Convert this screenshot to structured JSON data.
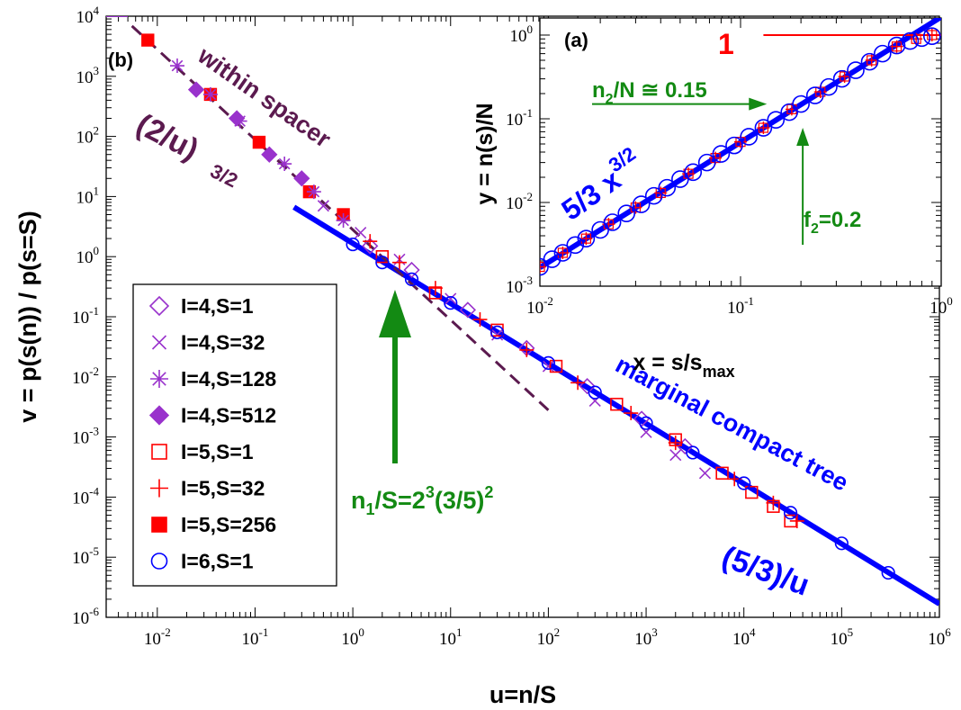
{
  "chart_data": [
    {
      "panel": "(b)",
      "type": "scatter",
      "xlabel": "u=n/S",
      "ylabel": "v = p(s(n)) / p(s=S)",
      "x_scale": "log",
      "y_scale": "log",
      "xlim": [
        0.003,
        1000000
      ],
      "ylim": [
        1e-06,
        10000
      ],
      "x_ticks": [
        "10-2",
        "10-1",
        "100",
        "101",
        "102",
        "103",
        "104",
        "105",
        "106"
      ],
      "y_ticks": [
        "10-6",
        "10-5",
        "10-4",
        "10-3",
        "10-2",
        "10-1",
        "100",
        "101",
        "102",
        "103",
        "104"
      ],
      "legend": {
        "placement": "left",
        "entries": [
          {
            "label": "I=4,S=1",
            "marker": "diamond-open",
            "color": "#9932cc"
          },
          {
            "label": "I=4,S=32",
            "marker": "x",
            "color": "#9932cc"
          },
          {
            "label": "I=4,S=128",
            "marker": "asterisk",
            "color": "#9932cc"
          },
          {
            "label": "I=4,S=512",
            "marker": "diamond-filled",
            "color": "#9932cc"
          },
          {
            "label": "I=5,S=1",
            "marker": "square-open",
            "color": "#ff0000"
          },
          {
            "label": "I=5,S=32",
            "marker": "plus",
            "color": "#ff0000"
          },
          {
            "label": "I=5,S=256",
            "marker": "square-filled",
            "color": "#ff0000"
          },
          {
            "label": "I=6,S=1",
            "marker": "circle-open",
            "color": "#0000ff"
          }
        ]
      },
      "series": [
        {
          "label": "I=5,S=256",
          "x": [
            0.008,
            0.035,
            0.11,
            0.36,
            0.8
          ],
          "y": [
            4000,
            500,
            80,
            12,
            5
          ]
        },
        {
          "label": "I=4,S=512",
          "x": [
            0.025,
            0.065,
            0.14,
            0.3
          ],
          "y": [
            600,
            200,
            50,
            20
          ]
        },
        {
          "label": "I=4,S=128",
          "x": [
            0.016,
            0.035,
            0.07,
            0.2,
            0.4,
            0.8
          ],
          "y": [
            1500,
            500,
            180,
            35,
            12,
            4
          ]
        },
        {
          "label": "I=4,S=32",
          "x": [
            0.5,
            1.2,
            3,
            10,
            30,
            100,
            300,
            1000,
            2000,
            4000
          ],
          "y": [
            7,
            2.5,
            0.9,
            0.2,
            0.05,
            0.015,
            0.004,
            0.0012,
            0.0005,
            0.00025
          ]
        },
        {
          "label": "I=4,S=1",
          "x": [
            1.5,
            4,
            15,
            60,
            250,
            900,
            2500
          ],
          "y": [
            1.5,
            0.6,
            0.13,
            0.03,
            0.007,
            0.002,
            0.0007
          ]
        },
        {
          "label": "I=5,S=32",
          "x": [
            1.5,
            3,
            7,
            20,
            60,
            200,
            700,
            2000,
            8000,
            20000,
            35000
          ],
          "y": [
            1.8,
            0.8,
            0.3,
            0.09,
            0.028,
            0.008,
            0.0025,
            0.0008,
            0.0002,
            8e-05,
            4e-05
          ]
        },
        {
          "label": "I=5,S=1",
          "x": [
            2,
            7,
            30,
            120,
            500,
            2000,
            6000,
            12000,
            20000,
            30000
          ],
          "y": [
            1,
            0.25,
            0.06,
            0.015,
            0.0035,
            0.0009,
            0.00025,
            0.00012,
            7e-05,
            4e-05
          ]
        },
        {
          "label": "I=6,S=1",
          "x": [
            1,
            2,
            4,
            10,
            30,
            100,
            300,
            1000,
            3000,
            10000,
            30000,
            100000,
            300000
          ],
          "y": [
            1.6,
            0.8,
            0.42,
            0.17,
            0.055,
            0.017,
            0.0055,
            0.0017,
            0.00055,
            0.00017,
            5.5e-05,
            1.7e-05,
            5.5e-06
          ]
        }
      ],
      "lines": [
        {
          "name": "(5/3)/u",
          "style": "solid",
          "color": "#0000ff",
          "x": [
            0.25,
            1000000
          ],
          "y": [
            6.667,
            1.67e-06
          ]
        },
        {
          "name": "(2/u)^(3/2)",
          "style": "dashed",
          "color": "#5b1a4f",
          "x": [
            0.0055,
            100
          ],
          "y": [
            6875,
            0.0028
          ]
        },
        {
          "name": "plateau",
          "style": "solid",
          "color": "#9932cc",
          "x": [
            0.003,
            0.005
          ],
          "y": [
            10000,
            10000
          ]
        }
      ],
      "annotations": {
        "panel_label": "(b)",
        "spacer_label": "within spacer",
        "spacer_formula": "(2/u)",
        "spacer_exp": "3/2",
        "tree_label": "marginal compact tree",
        "tree_formula": "(5/3)/u",
        "arrow_label_main": "n",
        "arrow_label_sub": "1",
        "arrow_label_rest": "/S=2",
        "arrow_label_sup1": "3",
        "arrow_label_mid": "(3/5)",
        "arrow_label_sup2": "2",
        "arrow_x": 2.7
      }
    },
    {
      "panel": "(a)",
      "type": "scatter",
      "xlabel_main": "x = s/s",
      "xlabel_sub": "max",
      "ylabel": "y = n(s)/N",
      "x_scale": "log",
      "y_scale": "log",
      "xlim": [
        0.01,
        1
      ],
      "ylim": [
        0.001,
        1.6
      ],
      "x_ticks": [
        "10-2",
        "10-1",
        "100"
      ],
      "y_ticks": [
        "10-3",
        "10-2",
        "10-1",
        "100"
      ],
      "series": [
        {
          "label": "red",
          "color": "#ff0000",
          "x": [
            0.01,
            0.013,
            0.017,
            0.022,
            0.03,
            0.04,
            0.055,
            0.075,
            0.1,
            0.13,
            0.18,
            0.25,
            0.33,
            0.45,
            0.6,
            0.75,
            0.9
          ],
          "y": [
            0.0017,
            0.0025,
            0.0037,
            0.0055,
            0.0087,
            0.013,
            0.022,
            0.034,
            0.053,
            0.078,
            0.13,
            0.21,
            0.32,
            0.5,
            0.73,
            0.9,
            1.0
          ]
        },
        {
          "label": "blue",
          "color": "#0000ff",
          "x": [
            0.01,
            0.0115,
            0.013,
            0.015,
            0.017,
            0.02,
            0.023,
            0.027,
            0.032,
            0.037,
            0.043,
            0.05,
            0.058,
            0.068,
            0.08,
            0.093,
            0.11,
            0.13,
            0.15,
            0.175,
            0.2,
            0.235,
            0.275,
            0.32,
            0.375,
            0.44,
            0.51,
            0.6,
            0.7,
            0.8,
            0.9
          ],
          "y": [
            0.0017,
            0.0021,
            0.0025,
            0.0031,
            0.0037,
            0.0047,
            0.0058,
            0.0074,
            0.0095,
            0.012,
            0.015,
            0.019,
            0.023,
            0.03,
            0.038,
            0.048,
            0.061,
            0.078,
            0.097,
            0.12,
            0.15,
            0.19,
            0.24,
            0.3,
            0.38,
            0.48,
            0.6,
            0.75,
            0.85,
            0.92,
            0.97
          ]
        }
      ],
      "lines": [
        {
          "name": "5/3 x^(3/2)",
          "style": "solid",
          "color": "#0000ff",
          "x": [
            0.01,
            1.1
          ],
          "y": [
            0.001667,
            1.9
          ]
        },
        {
          "name": "1",
          "style": "solid",
          "color": "#ff0000",
          "x": [
            0.13,
            1
          ],
          "y": [
            1,
            1
          ]
        }
      ],
      "annotations": {
        "panel_label": "(a)",
        "one_label": "1",
        "n2_main": "n",
        "n2_sub": "2",
        "n2_rest": "/N ≅ 0.15",
        "fit_main": "5/3 x",
        "fit_sup": "3/2",
        "f2_main": "f",
        "f2_sub": "2",
        "f2_rest": "=0.2",
        "n2_arrow_y": 0.15,
        "f2_arrow_x": 0.2
      }
    }
  ]
}
